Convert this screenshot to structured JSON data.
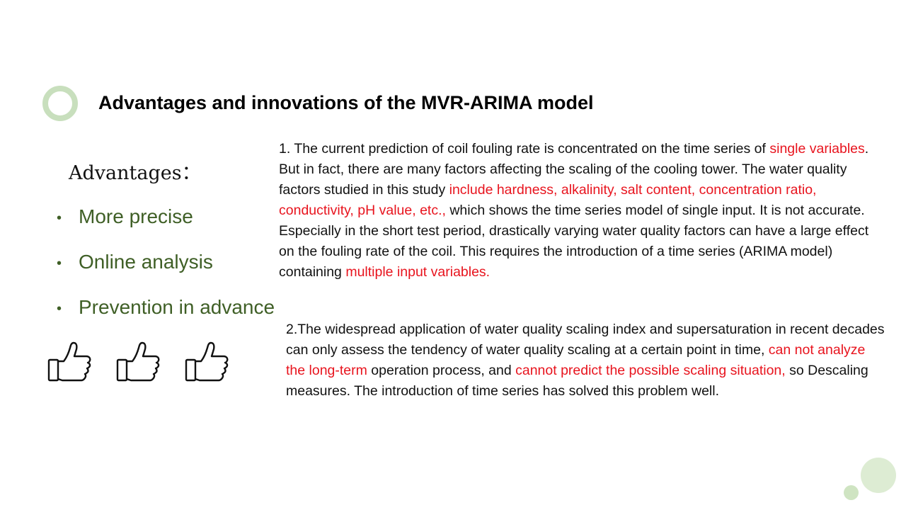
{
  "slide": {
    "title": "Advantages and innovations of the MVR-ARIMA model",
    "advantages_heading": "Advantages：",
    "advantages": [
      "More precise",
      "Online analysis",
      "Prevention in advance"
    ],
    "bullet_glyph": "•",
    "thumb_icons": [
      "thumbs-up-icon",
      "thumbs-up-icon",
      "thumbs-up-icon"
    ],
    "paragraph1": [
      {
        "text": "1. The current prediction of coil fouling rate is concentrated on the time series of ",
        "emphasis": false
      },
      {
        "text": "single variables",
        "emphasis": true
      },
      {
        "text": ". But in fact, there are many factors affecting the scaling of the cooling tower. The water quality factors studied in this study ",
        "emphasis": false
      },
      {
        "text": "include hardness, alkalinity, salt content, concentration ratio, conductivity, pH value, etc.,",
        "emphasis": true
      },
      {
        "text": " which shows the time series model of single input. It is not accurate. Especially in the short test period, drastically varying water quality factors can have a large effect on the fouling rate of the coil. This requires the introduction of a time series (ARIMA model) containing ",
        "emphasis": false
      },
      {
        "text": "multiple input variables.",
        "emphasis": true
      }
    ],
    "paragraph2": [
      {
        "text": "2.The widespread application of water quality scaling index and supersaturation in recent decades can only assess the tendency of water quality scaling at a certain point in time, ",
        "emphasis": false
      },
      {
        "text": "can not analyze the long-term",
        "emphasis": true
      },
      {
        "text": " operation process, and ",
        "emphasis": false
      },
      {
        "text": "cannot predict the possible scaling situation,",
        "emphasis": true
      },
      {
        "text": " so Descaling measures. The introduction of time series has solved this problem well.",
        "emphasis": false
      }
    ]
  },
  "colors": {
    "accent_green": "#c8dfbd",
    "bullet_text": "#3f5f26",
    "emphasis_red": "#e8141e",
    "body_text": "#111111"
  }
}
